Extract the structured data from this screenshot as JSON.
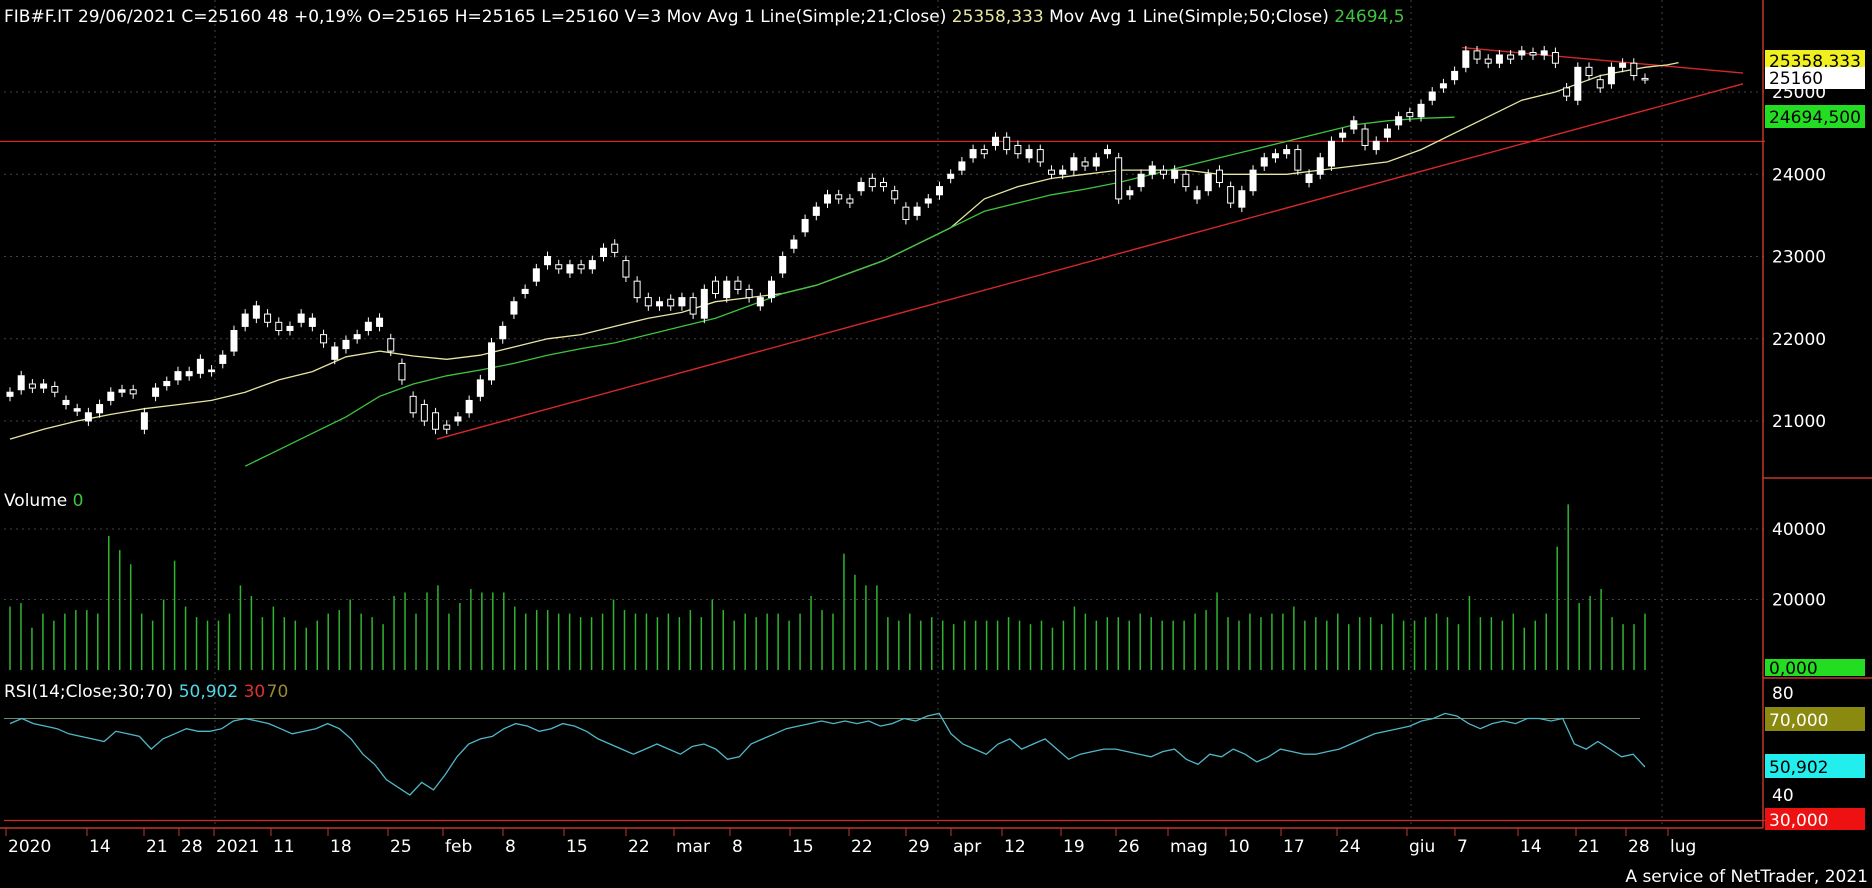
{
  "header": {
    "symbol": "FIB#F.IT",
    "date": "29/06/2021",
    "quote": "C=25160 48 +0,19% O=25165 H=25165 L=25160 V=3",
    "ma21_label": "Mov Avg 1 Line(Simple;21;Close)",
    "ma21_value": "25358,333",
    "ma50_label": "Mov Avg 1 Line(Simple;50;Close)",
    "ma50_value": "24694,5"
  },
  "volume_panel": {
    "label": "Volume",
    "value": "0"
  },
  "rsi_panel": {
    "label": "RSI(14;Close;30;70)",
    "value": "50,902",
    "low": "30",
    "high": "70"
  },
  "price_axis": {
    "ticks": [
      "21000",
      "22000",
      "23000",
      "24000",
      "25000"
    ]
  },
  "volume_axis": {
    "ticks": [
      "20000",
      "40000"
    ]
  },
  "rsi_axis": {
    "ticks": [
      "40",
      "80"
    ]
  },
  "badges": {
    "ma21": "25358,333",
    "last": "25160",
    "ma50": "24694,500",
    "volume": "0,000",
    "rsi_high": "70,000",
    "rsi": "50,902",
    "rsi_low": "30,000"
  },
  "x_axis_labels": [
    "2020",
    "14",
    "21",
    "28",
    "2021",
    "11",
    "18",
    "25",
    "feb",
    "8",
    "15",
    "22",
    "mar",
    "8",
    "15",
    "22",
    "29",
    "apr",
    "12",
    "19",
    "26",
    "mag",
    "10",
    "17",
    "24",
    "giu",
    "7",
    "14",
    "21",
    "28",
    "lug"
  ],
  "footer": "A service of NetTrader, 2021",
  "colors": {
    "background": "#000000",
    "candle_up": "#ffffff",
    "candle_down": "#ffffff",
    "ma21": "#e6e6a0",
    "ma50": "#3ec43e",
    "trendline": "#d62828",
    "volume": "#2fb52f",
    "rsi_line": "#4fb8c8",
    "rsi_level": "#6f8a6f",
    "axis": "#c0392b",
    "grid": "#444444"
  },
  "chart_data": {
    "type": "candlestick",
    "price_ylim": [
      20500,
      25600
    ],
    "volume_ylim": [
      0,
      45000
    ],
    "rsi_ylim": [
      24,
      84
    ],
    "horizontal_level": 24400,
    "trendlines": [
      {
        "from": [
          0,
          20750
        ],
        "to": [
          1,
          25100
        ],
        "start_index": 52,
        "end_index": 210
      },
      {
        "from": [
          0,
          25500
        ],
        "to": [
          1,
          25250
        ],
        "start_index": 178,
        "end_index": 210
      }
    ],
    "candles": [
      [
        21300,
        21350
      ],
      [
        21380,
        21550
      ],
      [
        21450,
        21400
      ],
      [
        21400,
        21450
      ],
      [
        21420,
        21350
      ],
      [
        21200,
        21250
      ],
      [
        21120,
        21150
      ],
      [
        21000,
        21100
      ],
      [
        21100,
        21200
      ],
      [
        21250,
        21350
      ],
      [
        21350,
        21380
      ],
      [
        21380,
        21330
      ],
      [
        20900,
        21100
      ],
      [
        21300,
        21400
      ],
      [
        21430,
        21480
      ],
      [
        21500,
        21600
      ],
      [
        21550,
        21600
      ],
      [
        21580,
        21750
      ],
      [
        21600,
        21620
      ],
      [
        21700,
        21800
      ],
      [
        21850,
        22100
      ],
      [
        22150,
        22300
      ],
      [
        22250,
        22400
      ],
      [
        22300,
        22200
      ],
      [
        22200,
        22100
      ],
      [
        22100,
        22150
      ],
      [
        22200,
        22300
      ],
      [
        22150,
        22250
      ],
      [
        22050,
        21950
      ],
      [
        21750,
        21900
      ],
      [
        21880,
        21980
      ],
      [
        22000,
        22050
      ],
      [
        22100,
        22200
      ],
      [
        22150,
        22250
      ],
      [
        22000,
        21850
      ],
      [
        21700,
        21500
      ],
      [
        21300,
        21100
      ],
      [
        21200,
        21000
      ],
      [
        21100,
        20900
      ],
      [
        20950,
        20900
      ],
      [
        21000,
        21050
      ],
      [
        21100,
        21250
      ],
      [
        21300,
        21500
      ],
      [
        21500,
        21950
      ],
      [
        22000,
        22150
      ],
      [
        22300,
        22450
      ],
      [
        22550,
        22600
      ],
      [
        22700,
        22850
      ],
      [
        22900,
        23000
      ],
      [
        22900,
        22850
      ],
      [
        22800,
        22900
      ],
      [
        22900,
        22850
      ],
      [
        22850,
        22950
      ],
      [
        23000,
        23100
      ],
      [
        23150,
        23050
      ],
      [
        22950,
        22750
      ],
      [
        22700,
        22500
      ],
      [
        22500,
        22400
      ],
      [
        22400,
        22450
      ],
      [
        22480,
        22400
      ],
      [
        22400,
        22500
      ],
      [
        22500,
        22300
      ],
      [
        22250,
        22600
      ],
      [
        22700,
        22550
      ],
      [
        22500,
        22700
      ],
      [
        22700,
        22600
      ],
      [
        22600,
        22500
      ],
      [
        22400,
        22500
      ],
      [
        22500,
        22700
      ],
      [
        22800,
        23000
      ],
      [
        23100,
        23200
      ],
      [
        23300,
        23450
      ],
      [
        23500,
        23600
      ],
      [
        23650,
        23750
      ],
      [
        23750,
        23700
      ],
      [
        23700,
        23650
      ],
      [
        23800,
        23900
      ],
      [
        23950,
        23850
      ],
      [
        23900,
        23850
      ],
      [
        23800,
        23700
      ],
      [
        23600,
        23450
      ],
      [
        23500,
        23600
      ],
      [
        23650,
        23700
      ],
      [
        23750,
        23850
      ],
      [
        23950,
        24000
      ],
      [
        24050,
        24150
      ],
      [
        24200,
        24300
      ],
      [
        24300,
        24250
      ],
      [
        24350,
        24450
      ],
      [
        24450,
        24300
      ],
      [
        24350,
        24250
      ],
      [
        24200,
        24300
      ],
      [
        24300,
        24150
      ],
      [
        24050,
        24000
      ],
      [
        24000,
        24050
      ],
      [
        24050,
        24200
      ],
      [
        24150,
        24100
      ],
      [
        24100,
        24200
      ],
      [
        24250,
        24300
      ],
      [
        24200,
        23700
      ],
      [
        23750,
        23800
      ],
      [
        23850,
        24000
      ],
      [
        24000,
        24100
      ],
      [
        24050,
        24000
      ],
      [
        23950,
        24050
      ],
      [
        24000,
        23850
      ],
      [
        23700,
        23800
      ],
      [
        23800,
        24000
      ],
      [
        24050,
        23900
      ],
      [
        23850,
        23650
      ],
      [
        23600,
        23800
      ],
      [
        23800,
        24050
      ],
      [
        24100,
        24200
      ],
      [
        24200,
        24250
      ],
      [
        24250,
        24300
      ],
      [
        24300,
        24050
      ],
      [
        23900,
        24000
      ],
      [
        24000,
        24200
      ],
      [
        24100,
        24400
      ],
      [
        24450,
        24500
      ],
      [
        24550,
        24650
      ],
      [
        24550,
        24350
      ],
      [
        24300,
        24400
      ],
      [
        24450,
        24550
      ],
      [
        24600,
        24700
      ],
      [
        24750,
        24700
      ],
      [
        24700,
        24850
      ],
      [
        24900,
        25000
      ],
      [
        25050,
        25100
      ],
      [
        25150,
        25250
      ],
      [
        25300,
        25500
      ],
      [
        25500,
        25400
      ],
      [
        25400,
        25350
      ],
      [
        25350,
        25450
      ],
      [
        25450,
        25400
      ],
      [
        25450,
        25500
      ],
      [
        25480,
        25450
      ],
      [
        25450,
        25500
      ],
      [
        25480,
        25350
      ],
      [
        25050,
        24950
      ],
      [
        24900,
        25300
      ],
      [
        25300,
        25200
      ],
      [
        25150,
        25050
      ],
      [
        25100,
        25300
      ],
      [
        25300,
        25350
      ],
      [
        25350,
        25200
      ],
      [
        25165,
        25160
      ]
    ],
    "ma21": [
      [
        0,
        20780
      ],
      [
        3,
        20900
      ],
      [
        6,
        21000
      ],
      [
        9,
        21080
      ],
      [
        12,
        21150
      ],
      [
        15,
        21200
      ],
      [
        18,
        21250
      ],
      [
        21,
        21350
      ],
      [
        24,
        21500
      ],
      [
        27,
        21600
      ],
      [
        30,
        21780
      ],
      [
        33,
        21850
      ],
      [
        36,
        21790
      ],
      [
        39,
        21750
      ],
      [
        42,
        21800
      ],
      [
        45,
        21900
      ],
      [
        48,
        22000
      ],
      [
        51,
        22050
      ],
      [
        54,
        22150
      ],
      [
        57,
        22250
      ],
      [
        60,
        22320
      ],
      [
        63,
        22450
      ],
      [
        66,
        22500
      ],
      [
        69,
        22550
      ],
      [
        72,
        22650
      ],
      [
        75,
        22800
      ],
      [
        78,
        22950
      ],
      [
        81,
        23150
      ],
      [
        84,
        23350
      ],
      [
        87,
        23700
      ],
      [
        90,
        23850
      ],
      [
        93,
        23950
      ],
      [
        96,
        24000
      ],
      [
        99,
        24050
      ],
      [
        102,
        24050
      ],
      [
        105,
        24050
      ],
      [
        108,
        24000
      ],
      [
        111,
        24000
      ],
      [
        114,
        24000
      ],
      [
        117,
        24050
      ],
      [
        120,
        24100
      ],
      [
        123,
        24150
      ],
      [
        126,
        24300
      ],
      [
        129,
        24500
      ],
      [
        132,
        24700
      ],
      [
        135,
        24900
      ],
      [
        138,
        25000
      ],
      [
        140,
        25100
      ],
      [
        142,
        25200
      ],
      [
        144,
        25250
      ],
      [
        146,
        25300
      ],
      [
        148,
        25330
      ],
      [
        149,
        25358
      ]
    ],
    "ma50": [
      [
        21,
        20450
      ],
      [
        24,
        20650
      ],
      [
        27,
        20850
      ],
      [
        30,
        21050
      ],
      [
        33,
        21300
      ],
      [
        36,
        21450
      ],
      [
        39,
        21550
      ],
      [
        42,
        21620
      ],
      [
        45,
        21700
      ],
      [
        48,
        21800
      ],
      [
        51,
        21880
      ],
      [
        54,
        21950
      ],
      [
        57,
        22050
      ],
      [
        60,
        22150
      ],
      [
        63,
        22250
      ],
      [
        66,
        22400
      ],
      [
        69,
        22550
      ],
      [
        72,
        22650
      ],
      [
        75,
        22800
      ],
      [
        78,
        22950
      ],
      [
        81,
        23150
      ],
      [
        84,
        23350
      ],
      [
        87,
        23550
      ],
      [
        90,
        23650
      ],
      [
        93,
        23750
      ],
      [
        96,
        23820
      ],
      [
        99,
        23900
      ],
      [
        102,
        24000
      ],
      [
        105,
        24100
      ],
      [
        108,
        24200
      ],
      [
        111,
        24300
      ],
      [
        114,
        24400
      ],
      [
        117,
        24500
      ],
      [
        120,
        24600
      ],
      [
        123,
        24650
      ],
      [
        126,
        24680
      ],
      [
        129,
        24694
      ]
    ],
    "volume": [
      18,
      19,
      12,
      16,
      14,
      16,
      17,
      17,
      16,
      38,
      34,
      30,
      16,
      14,
      20,
      31,
      18,
      15,
      14,
      14,
      16,
      24,
      21,
      15,
      18,
      15,
      14,
      12,
      14,
      16,
      17,
      20,
      16,
      15,
      13,
      21,
      22,
      16,
      22,
      24,
      16,
      19,
      23,
      22,
      22,
      22,
      18,
      16,
      17,
      17,
      16,
      16,
      15,
      15,
      16,
      20,
      17,
      16,
      16,
      15,
      16,
      15,
      17,
      15,
      20,
      17,
      14,
      16,
      15,
      16,
      16,
      14,
      16,
      21,
      17,
      16,
      33,
      27,
      24,
      24,
      15,
      14,
      16,
      14,
      15,
      14,
      13,
      14,
      14,
      14,
      14,
      15,
      14,
      13,
      14,
      12,
      14,
      18,
      16,
      14,
      15,
      15,
      14,
      16,
      15,
      14,
      14,
      14,
      16,
      17,
      22,
      15,
      14,
      16,
      15,
      16,
      16,
      18,
      14,
      15,
      14,
      16,
      13,
      15,
      15,
      13,
      16,
      14,
      14,
      15,
      16,
      15,
      13,
      21,
      15,
      15,
      14,
      16,
      12,
      14,
      16,
      35,
      47,
      19,
      21,
      23,
      15,
      13,
      13,
      16
    ],
    "rsi": [
      68,
      70,
      68,
      67,
      66,
      64,
      63,
      62,
      61,
      65,
      64,
      63,
      58,
      62,
      64,
      66,
      65,
      65,
      66,
      69,
      70,
      69,
      68,
      66,
      64,
      65,
      66,
      68,
      66,
      62,
      56,
      52,
      46,
      43,
      40,
      45,
      42,
      48,
      55,
      60,
      62,
      63,
      66,
      68,
      67,
      65,
      66,
      68,
      67,
      65,
      62,
      60,
      58,
      56,
      58,
      60,
      58,
      56,
      59,
      60,
      58,
      54,
      55,
      60,
      62,
      64,
      66,
      67,
      68,
      69,
      68,
      69,
      68,
      69,
      67,
      68,
      70,
      69,
      71,
      72,
      64,
      60,
      58,
      56,
      60,
      62,
      58,
      60,
      62,
      58,
      54,
      56,
      57,
      58,
      58,
      57,
      56,
      55,
      57,
      58,
      54,
      52,
      56,
      55,
      58,
      56,
      53,
      55,
      58,
      57,
      56,
      56,
      57,
      58,
      60,
      62,
      64,
      65,
      66,
      67,
      69,
      70,
      72,
      71,
      68,
      66,
      68,
      69,
      68,
      70,
      70,
      69,
      70,
      60,
      58,
      61,
      58,
      55,
      56,
      51
    ]
  }
}
